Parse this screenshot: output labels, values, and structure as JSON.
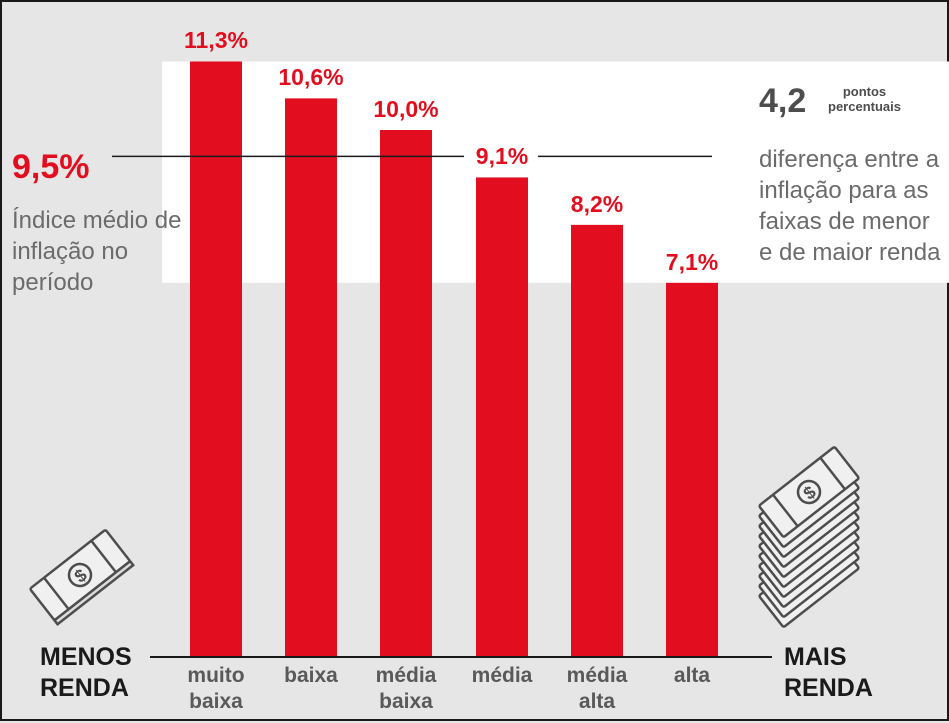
{
  "chart_data": {
    "type": "bar",
    "categories": [
      "muito baixa",
      "baixa",
      "média baixa",
      "média",
      "média alta",
      "alta"
    ],
    "values": [
      11.3,
      10.6,
      10.0,
      9.1,
      8.2,
      7.1
    ],
    "value_labels": [
      "11,3%",
      "10,6%",
      "10,0%",
      "9,1%",
      "8,2%",
      "7,1%"
    ],
    "bar_color": "#e20e1f",
    "reference_line": {
      "value": 9.5
    },
    "highlight_band": [
      7.1,
      11.3
    ],
    "xlabel": "",
    "ylabel": ""
  },
  "average": {
    "value": "9,5%",
    "description": "Índice médio de inflação no período"
  },
  "difference": {
    "value": "4,2",
    "unit_line1": "pontos",
    "unit_line2": "percentuais",
    "description": "diferença entre a inflação para as faixas de menor e de maior renda"
  },
  "axis_ends": {
    "left_line1": "MENOS",
    "left_line2": "RENDA",
    "right_line1": "MAIS",
    "right_line2": "RENDA"
  },
  "category_lines": [
    [
      "muito",
      "baixa"
    ],
    [
      "baixa"
    ],
    [
      "média",
      "baixa"
    ],
    [
      "média"
    ],
    [
      "média",
      "alta"
    ],
    [
      "alta"
    ]
  ],
  "icons": {
    "left": "single-banknote-icon",
    "right": "banknote-stack-icon"
  }
}
